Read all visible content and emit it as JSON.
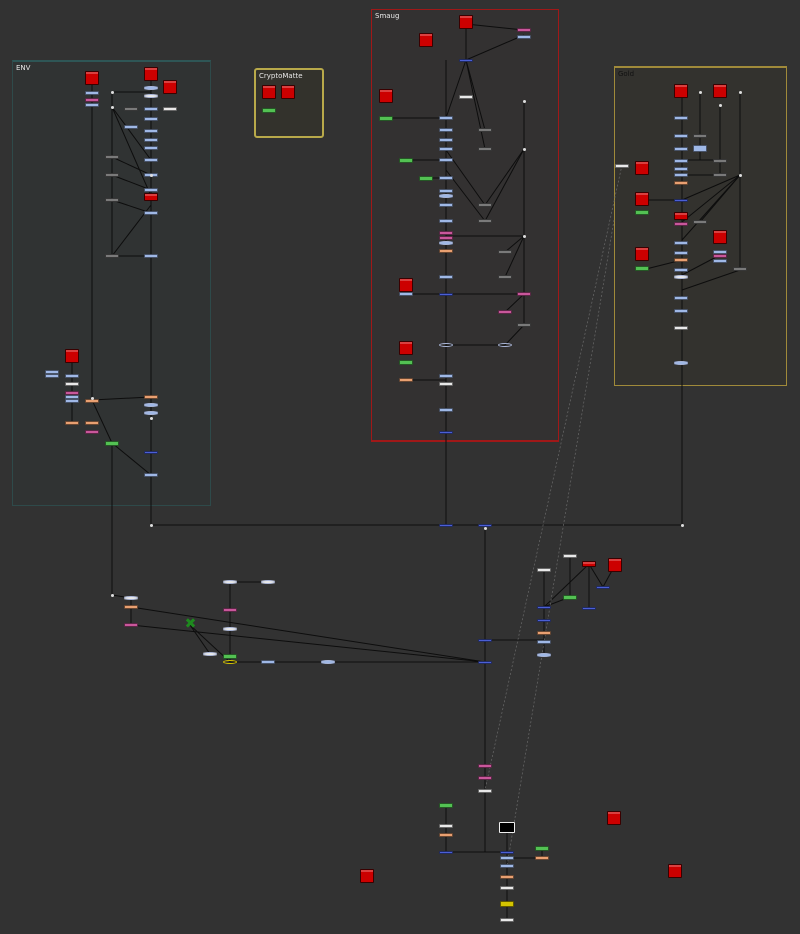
{
  "app": {
    "view": "node-graph"
  },
  "backdrops": [
    {
      "id": "env",
      "label": "ENV"
    },
    {
      "id": "cryptomatte",
      "label": "CryptoMatte"
    },
    {
      "id": "smaug",
      "label": "Smaug"
    },
    {
      "id": "gold",
      "label": "Gold"
    }
  ],
  "colors": {
    "background": "#323232",
    "read_node": "#cc0000",
    "merge_node": "#4b5fd6",
    "grade_node": "#9fb8e6",
    "transform_node": "#7a7a7a",
    "color_node": "#e9a071",
    "keyer_node": "#53c153",
    "mask_node": "#c9579b",
    "write_node": "#e9e9e9",
    "wire": "#0d0d0d",
    "env_backdrop": "#2e4a4a",
    "cryptomatte_backdrop": "#b8a94a",
    "smaug_backdrop": "#a01818",
    "gold_backdrop": "#a08a3a"
  },
  "node_types": [
    "read-node",
    "merge-node",
    "grade-node",
    "transform-node",
    "color-correct-node",
    "keyer-node",
    "mask-node",
    "write-node",
    "dot-node",
    "viewer-node"
  ]
}
